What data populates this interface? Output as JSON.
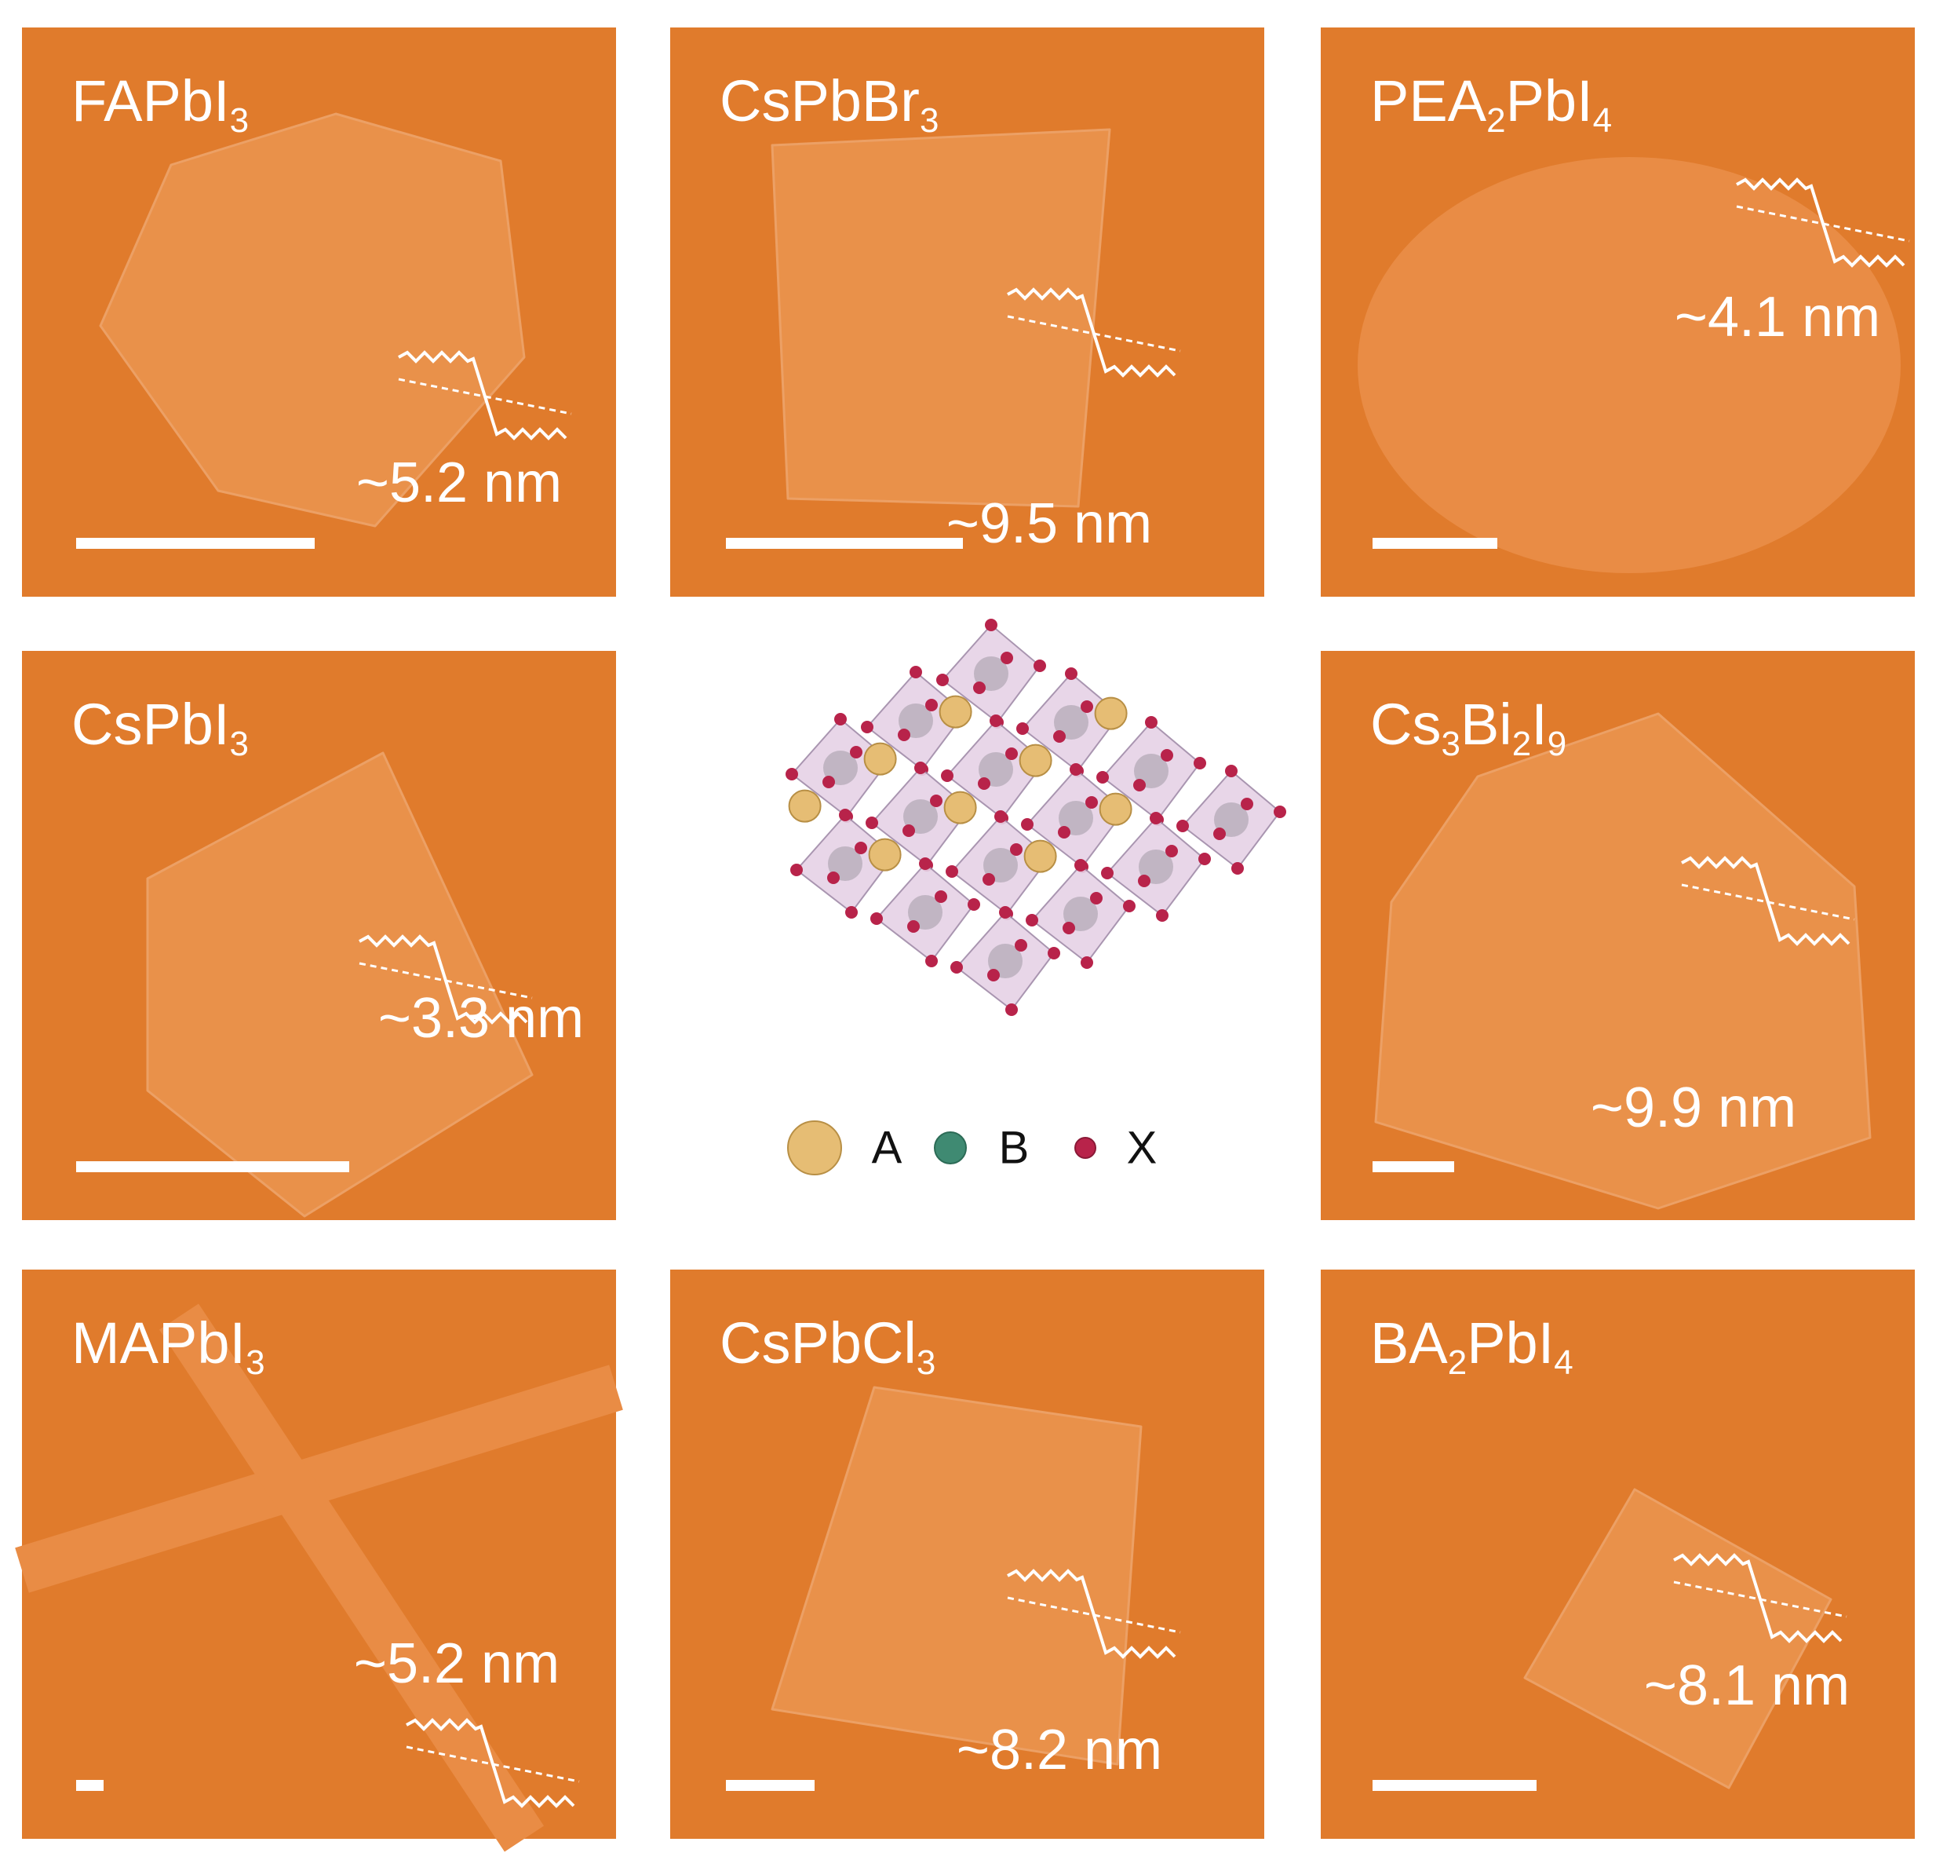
{
  "panels": [
    {
      "name": [
        {
          "t": "FAPbI"
        },
        {
          "s": "3"
        }
      ],
      "thickness": "~5.2 nm"
    },
    {
      "name": [
        {
          "t": "CsPbBr"
        },
        {
          "s": "3"
        }
      ],
      "thickness": "~9.5 nm"
    },
    {
      "name": [
        {
          "t": "PEA"
        },
        {
          "s": "2"
        },
        {
          "t": "PbI"
        },
        {
          "s": "4"
        }
      ],
      "thickness": "~4.1 nm"
    },
    {
      "name": [
        {
          "t": "CsPbI"
        },
        {
          "s": "3"
        }
      ],
      "thickness": "~3.3 nm"
    },
    {
      "name": [
        {
          "t": "Cs"
        },
        {
          "s": "3"
        },
        {
          "t": "Bi"
        },
        {
          "s": "2"
        },
        {
          "t": "I"
        },
        {
          "s": "9"
        }
      ],
      "thickness": "~9.9 nm"
    },
    {
      "name": [
        {
          "t": "MAPbI"
        },
        {
          "s": "3"
        }
      ],
      "thickness": "~5.2 nm"
    },
    {
      "name": [
        {
          "t": "CsPbCl"
        },
        {
          "s": "3"
        }
      ],
      "thickness": "~8.2 nm"
    },
    {
      "name": [
        {
          "t": "BA"
        },
        {
          "s": "2"
        },
        {
          "t": "PbI"
        },
        {
          "s": "4"
        }
      ],
      "thickness": "~8.1 nm"
    }
  ],
  "legend": [
    "A",
    "B",
    "X"
  ]
}
